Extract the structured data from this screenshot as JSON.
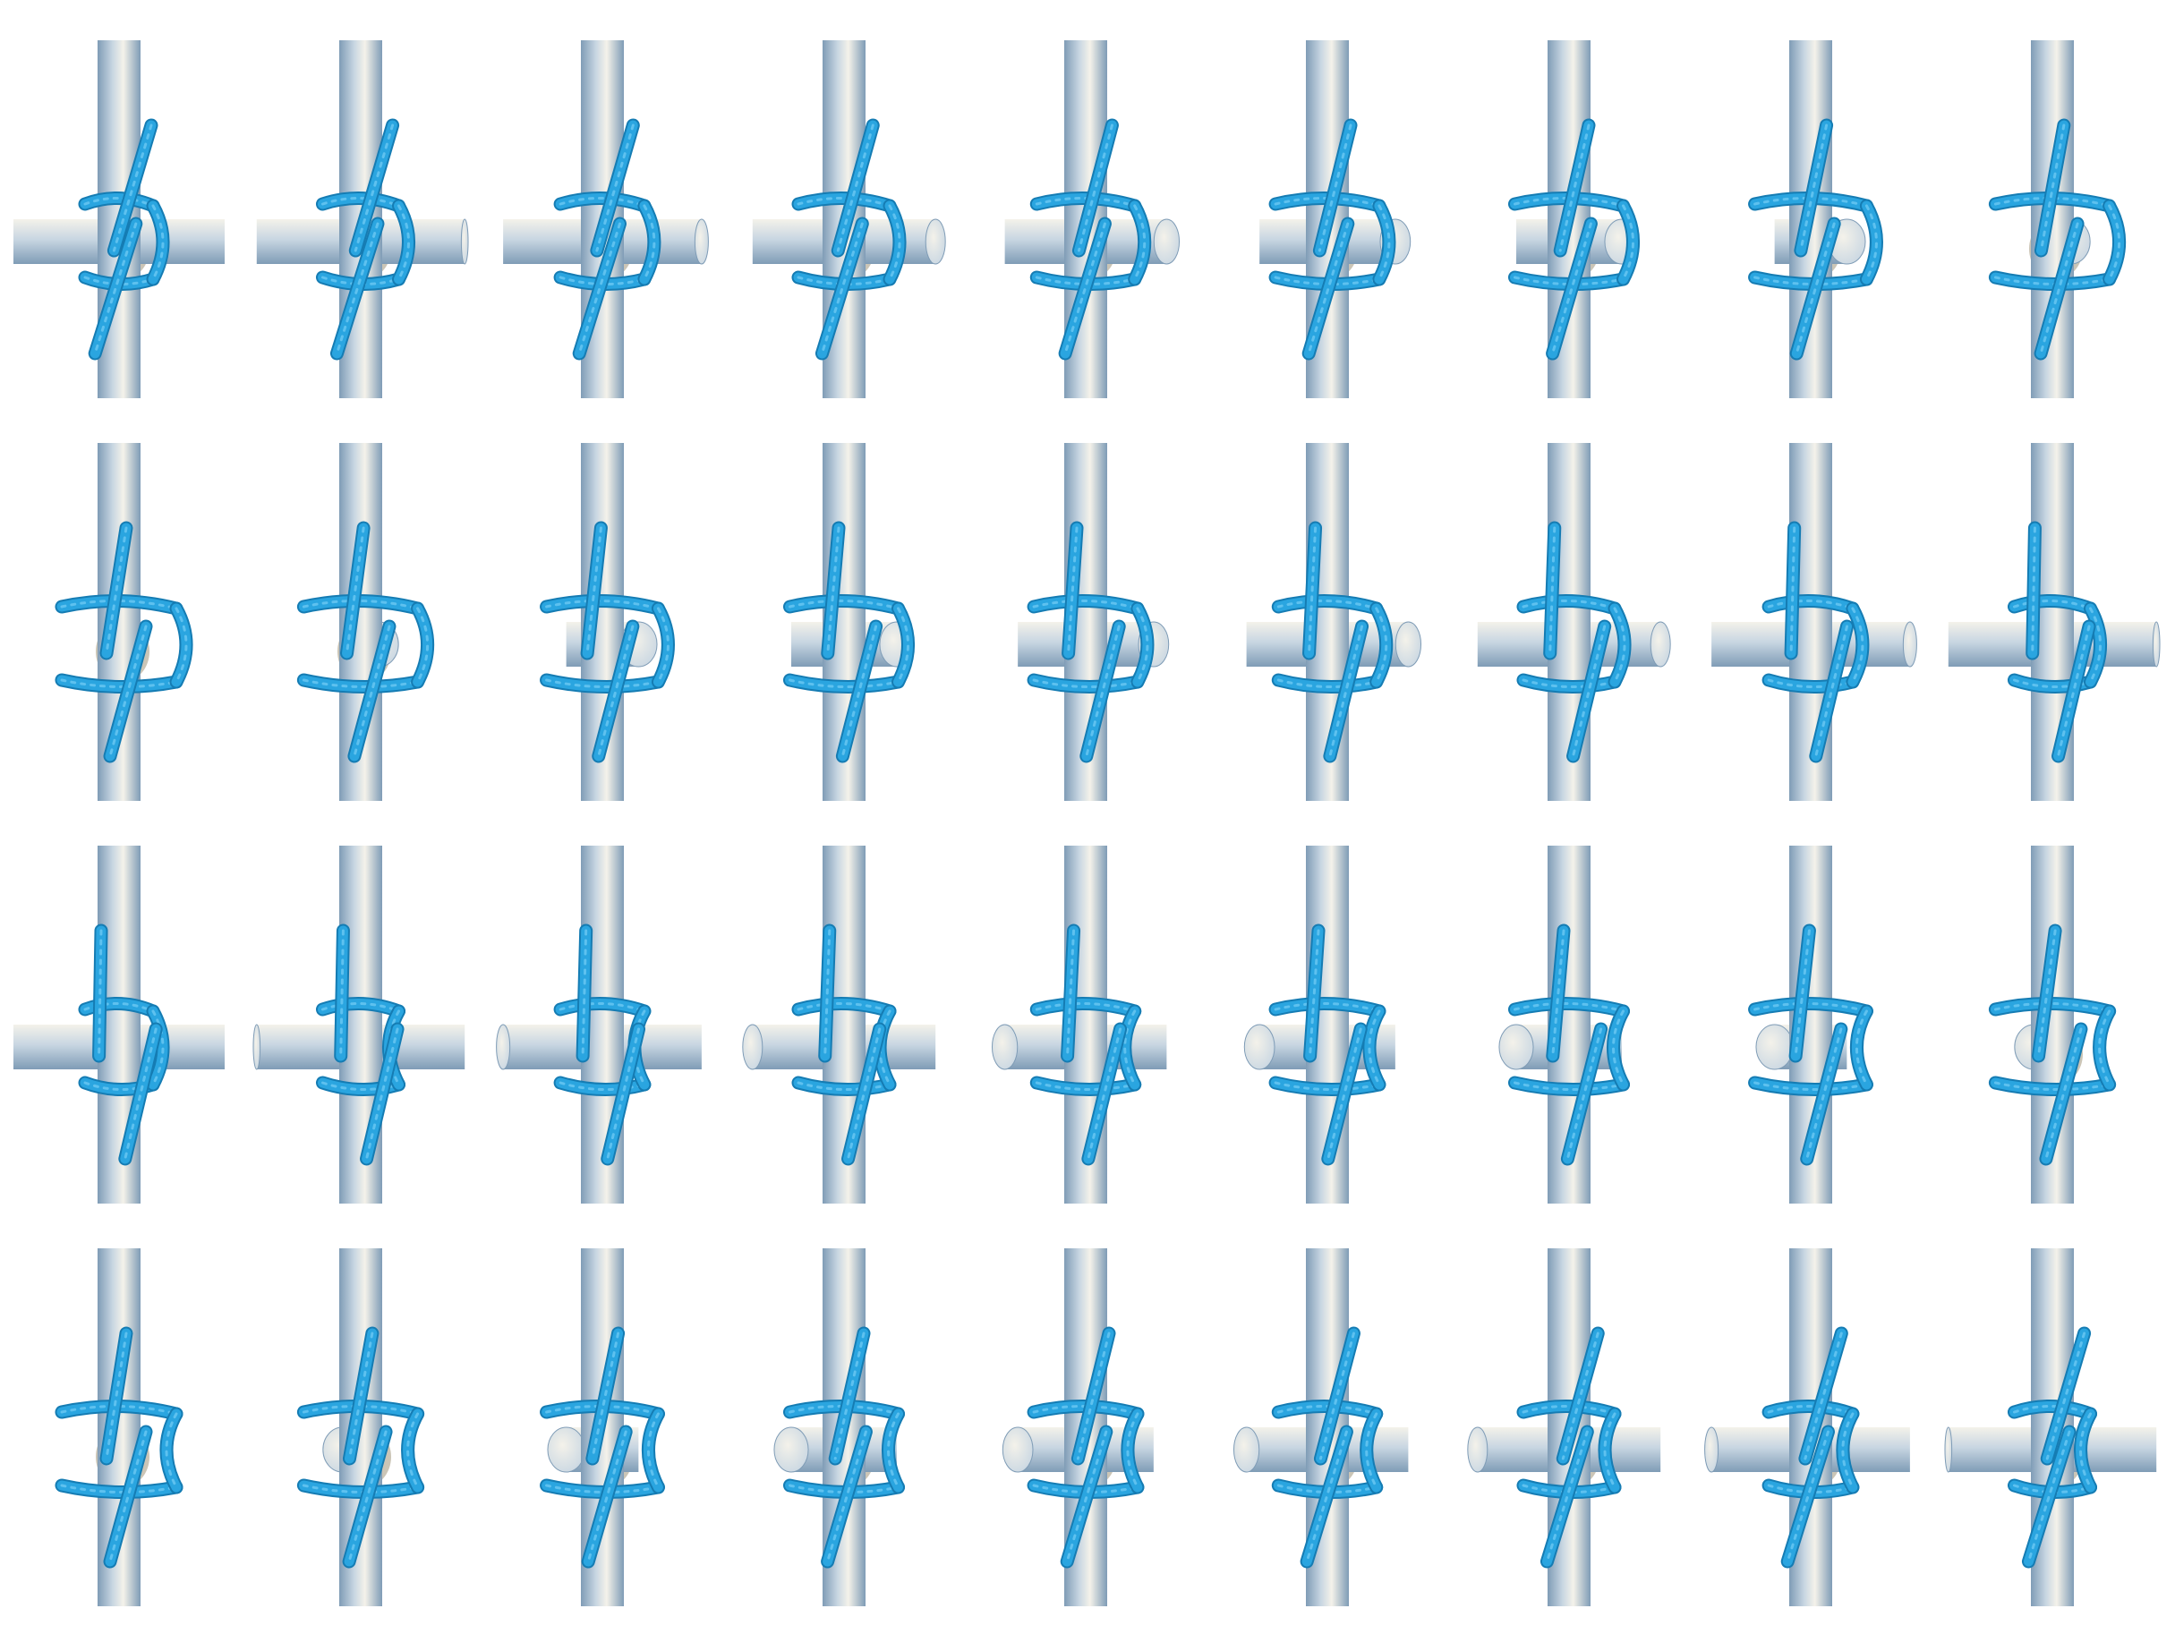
{
  "sheet": {
    "title": "",
    "rows": 4,
    "columns": 9,
    "frame_count": 36
  },
  "colors": {
    "background": "#ffffff",
    "pole_light": "#f4f2ea",
    "pole_mid": "#c8d6e2",
    "pole_dark": "#7f9cb6",
    "rope": "#2aa5e0",
    "rope_dark": "#157cb3",
    "rope_light": "#6cc8f2",
    "shadow": "#6b5a2e"
  },
  "subject": {
    "description_icon": "rope-lashing-knot-icon",
    "frames": [
      {
        "id": 1,
        "yaw_deg": 0
      },
      {
        "id": 2,
        "yaw_deg": 10
      },
      {
        "id": 3,
        "yaw_deg": 20
      },
      {
        "id": 4,
        "yaw_deg": 30
      },
      {
        "id": 5,
        "yaw_deg": 40
      },
      {
        "id": 6,
        "yaw_deg": 50
      },
      {
        "id": 7,
        "yaw_deg": 60
      },
      {
        "id": 8,
        "yaw_deg": 70
      },
      {
        "id": 9,
        "yaw_deg": 80
      },
      {
        "id": 10,
        "yaw_deg": 90
      },
      {
        "id": 11,
        "yaw_deg": 100
      },
      {
        "id": 12,
        "yaw_deg": 110
      },
      {
        "id": 13,
        "yaw_deg": 120
      },
      {
        "id": 14,
        "yaw_deg": 130
      },
      {
        "id": 15,
        "yaw_deg": 140
      },
      {
        "id": 16,
        "yaw_deg": 150
      },
      {
        "id": 17,
        "yaw_deg": 160
      },
      {
        "id": 18,
        "yaw_deg": 170
      },
      {
        "id": 19,
        "yaw_deg": 180
      },
      {
        "id": 20,
        "yaw_deg": 190
      },
      {
        "id": 21,
        "yaw_deg": 200
      },
      {
        "id": 22,
        "yaw_deg": 210
      },
      {
        "id": 23,
        "yaw_deg": 220
      },
      {
        "id": 24,
        "yaw_deg": 230
      },
      {
        "id": 25,
        "yaw_deg": 240
      },
      {
        "id": 26,
        "yaw_deg": 250
      },
      {
        "id": 27,
        "yaw_deg": 260
      },
      {
        "id": 28,
        "yaw_deg": 270
      },
      {
        "id": 29,
        "yaw_deg": 280
      },
      {
        "id": 30,
        "yaw_deg": 290
      },
      {
        "id": 31,
        "yaw_deg": 300
      },
      {
        "id": 32,
        "yaw_deg": 310
      },
      {
        "id": 33,
        "yaw_deg": 320
      },
      {
        "id": 34,
        "yaw_deg": 330
      },
      {
        "id": 35,
        "yaw_deg": 340
      },
      {
        "id": 36,
        "yaw_deg": 350
      }
    ]
  }
}
